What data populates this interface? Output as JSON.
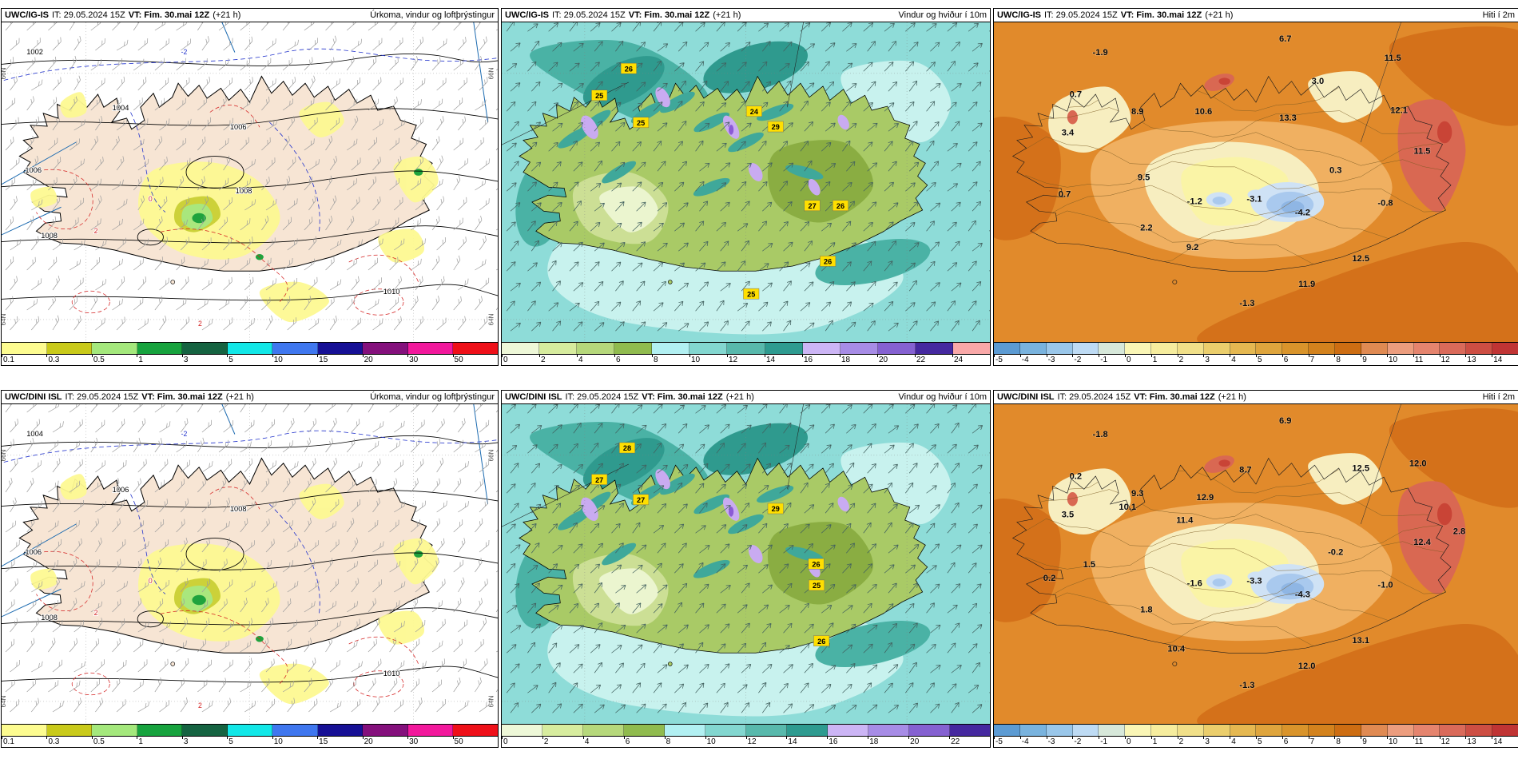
{
  "map_colors": {
    "precip_sea": "#ffffff",
    "precip_land": "#f7e5d4",
    "wind_sea": "#8edcd8",
    "wind_land": "#a9ca66",
    "temp_base": "#e18a2b",
    "gust_label_bg": "#ffdf00",
    "isobar_color": "#000000",
    "warm_front_color": "#d42020",
    "cold_front_color": "#2233cc"
  },
  "scales": {
    "precip": {
      "labels": [
        "0.1",
        "0.3",
        "0.5",
        "1",
        "3",
        "5",
        "10",
        "15",
        "20",
        "30",
        "50"
      ],
      "colors": [
        "#fdfc90",
        "#c9ca1a",
        "#a4e87c",
        "#17a33e",
        "#156341",
        "#12e7e7",
        "#3f77ef",
        "#161095",
        "#84107c",
        "#f2189c",
        "#ef1019"
      ]
    },
    "wind_24": {
      "labels": [
        "0",
        "2",
        "4",
        "6",
        "8",
        "10",
        "12",
        "14",
        "16",
        "18",
        "20",
        "22",
        "24"
      ],
      "colors": [
        "#eef8d8",
        "#d7ec9e",
        "#b6d87b",
        "#90bb4e",
        "#b2f0f2",
        "#83d7d0",
        "#58b9ac",
        "#2e9b90",
        "#ccb5f5",
        "#a78ce6",
        "#8561d1",
        "#45289f",
        "#f9a8a8"
      ]
    },
    "wind_22": {
      "labels": [
        "0",
        "2",
        "4",
        "6",
        "8",
        "10",
        "12",
        "14",
        "16",
        "18",
        "20",
        "22"
      ],
      "colors": [
        "#eef8d8",
        "#d7ec9e",
        "#b6d87b",
        "#90bb4e",
        "#b2f0f2",
        "#83d7d0",
        "#58b9ac",
        "#2e9b90",
        "#ccb5f5",
        "#a78ce6",
        "#8561d1",
        "#45289f"
      ]
    },
    "temp": {
      "labels": [
        "-5",
        "-4",
        "-3",
        "-2",
        "-1",
        "0",
        "1",
        "2",
        "3",
        "4",
        "5",
        "6",
        "7",
        "8",
        "9",
        "10",
        "11",
        "12",
        "13",
        "14"
      ],
      "colors": [
        "#5c9bd3",
        "#79b3de",
        "#9ac7ea",
        "#bedbf4",
        "#d7e8da",
        "#faf6b6",
        "#f6ed9e",
        "#f1e089",
        "#ebce6c",
        "#e5b851",
        "#dfa53d",
        "#d9942b",
        "#d3821d",
        "#cd6d12",
        "#e08a52",
        "#ec9d7e",
        "#e5846e",
        "#da6a5a",
        "#cd4e43",
        "#c03434"
      ]
    }
  },
  "rows": [
    {
      "panels": [
        {
          "type": "precip",
          "scale_ref": "precip",
          "header": {
            "model": "UWC/IG-IS",
            "init": "IT: 29.05.2024 15Z",
            "valid": "VT: Fim. 30.mai 12Z",
            "lead": "(+21 h)",
            "variable": "Úrkoma, vindur og loftþrýstingur"
          },
          "lat_labels": [
            {
              "t": "66N",
              "y": 0.16
            },
            {
              "t": "64N",
              "y": 0.93
            }
          ],
          "isobars": [
            {
              "v": "1002",
              "x": 0.067,
              "y": 0.1
            },
            {
              "v": "1004",
              "x": 0.24,
              "y": 0.275
            },
            {
              "v": "1006",
              "x": 0.477,
              "y": 0.335
            },
            {
              "v": "1006",
              "x": 0.064,
              "y": 0.47
            },
            {
              "v": "1008",
              "x": 0.488,
              "y": 0.535
            },
            {
              "v": "1008",
              "x": 0.096,
              "y": 0.675
            },
            {
              "v": "1010",
              "x": 0.786,
              "y": 0.85
            }
          ],
          "contour_labels": [
            {
              "v": "-2",
              "x": 0.368,
              "y": 0.1,
              "c": "blue"
            },
            {
              "v": "0",
              "x": 0.3,
              "y": 0.56,
              "c": "red"
            },
            {
              "v": "2",
              "x": 0.19,
              "y": 0.66,
              "c": "red"
            },
            {
              "v": "2",
              "x": 0.4,
              "y": 0.95,
              "c": "red"
            }
          ]
        },
        {
          "type": "wind",
          "scale_ref": "wind_24",
          "header": {
            "model": "UWC/IG-IS",
            "init": "IT: 29.05.2024 15Z",
            "valid": "VT: Fim. 30.mai 12Z",
            "lead": "(+21 h)",
            "variable": "Vindur og hviður í 10m"
          },
          "gusts": [
            {
              "v": "26",
              "x": 0.26,
              "y": 0.145
            },
            {
              "v": "25",
              "x": 0.2,
              "y": 0.229
            },
            {
              "v": "25",
              "x": 0.285,
              "y": 0.314
            },
            {
              "v": "24",
              "x": 0.517,
              "y": 0.279
            },
            {
              "v": "29",
              "x": 0.561,
              "y": 0.327
            },
            {
              "v": "27",
              "x": 0.636,
              "y": 0.574
            },
            {
              "v": "26",
              "x": 0.694,
              "y": 0.574
            },
            {
              "v": "26",
              "x": 0.668,
              "y": 0.748
            },
            {
              "v": "25",
              "x": 0.511,
              "y": 0.85
            }
          ]
        },
        {
          "type": "temp",
          "scale_ref": "temp",
          "header": {
            "model": "UWC/IG-IS",
            "init": "IT: 29.05.2024 15Z",
            "valid": "VT: Fim. 30.mai 12Z",
            "lead": "(+21 h)",
            "variable": "Hiti í 2m"
          },
          "temps": [
            {
              "v": "6.7",
              "x": 0.556,
              "y": 0.06
            },
            {
              "v": "-1.9",
              "x": 0.203,
              "y": 0.102
            },
            {
              "v": "11.5",
              "x": 0.761,
              "y": 0.12
            },
            {
              "v": "3.0",
              "x": 0.618,
              "y": 0.192
            },
            {
              "v": "0.7",
              "x": 0.156,
              "y": 0.234
            },
            {
              "v": "8.9",
              "x": 0.274,
              "y": 0.287
            },
            {
              "v": "10.6",
              "x": 0.4,
              "y": 0.287
            },
            {
              "v": "13.3",
              "x": 0.561,
              "y": 0.307
            },
            {
              "v": "12.1",
              "x": 0.773,
              "y": 0.284
            },
            {
              "v": "3.4",
              "x": 0.141,
              "y": 0.354
            },
            {
              "v": "11.5",
              "x": 0.817,
              "y": 0.411
            },
            {
              "v": "9.5",
              "x": 0.286,
              "y": 0.494
            },
            {
              "v": "0.3",
              "x": 0.652,
              "y": 0.471
            },
            {
              "v": "0.7",
              "x": 0.135,
              "y": 0.546
            },
            {
              "v": "-1.2",
              "x": 0.383,
              "y": 0.569
            },
            {
              "v": "-3.1",
              "x": 0.497,
              "y": 0.561
            },
            {
              "v": "-4.2",
              "x": 0.589,
              "y": 0.604
            },
            {
              "v": "-0.8",
              "x": 0.747,
              "y": 0.574
            },
            {
              "v": "2.2",
              "x": 0.291,
              "y": 0.651
            },
            {
              "v": "9.2",
              "x": 0.379,
              "y": 0.713
            },
            {
              "v": "12.5",
              "x": 0.7,
              "y": 0.748
            },
            {
              "v": "11.9",
              "x": 0.597,
              "y": 0.828
            },
            {
              "v": "-1.3",
              "x": 0.483,
              "y": 0.888
            }
          ]
        }
      ]
    },
    {
      "panels": [
        {
          "type": "precip",
          "scale_ref": "precip",
          "header": {
            "model": "UWC/DINI ISL",
            "init": "IT: 29.05.2024 15Z",
            "valid": "VT: Fim. 30.mai 12Z",
            "lead": "(+21 h)",
            "variable": "Úrkoma, vindur og loftþrýstingur"
          },
          "lat_labels": [
            {
              "t": "66N",
              "y": 0.16
            },
            {
              "t": "64N",
              "y": 0.93
            }
          ],
          "isobars": [
            {
              "v": "1004",
              "x": 0.067,
              "y": 0.1
            },
            {
              "v": "1006",
              "x": 0.24,
              "y": 0.275
            },
            {
              "v": "1008",
              "x": 0.477,
              "y": 0.335
            },
            {
              "v": "1006",
              "x": 0.064,
              "y": 0.47
            },
            {
              "v": "1008",
              "x": 0.096,
              "y": 0.675
            },
            {
              "v": "1010",
              "x": 0.786,
              "y": 0.85
            }
          ],
          "contour_labels": [
            {
              "v": "-2",
              "x": 0.368,
              "y": 0.1,
              "c": "blue"
            },
            {
              "v": "0",
              "x": 0.3,
              "y": 0.56,
              "c": "red"
            },
            {
              "v": "2",
              "x": 0.19,
              "y": 0.66,
              "c": "red"
            },
            {
              "v": "2",
              "x": 0.4,
              "y": 0.95,
              "c": "red"
            }
          ]
        },
        {
          "type": "wind",
          "scale_ref": "wind_22",
          "header": {
            "model": "UWC/DINI ISL",
            "init": "IT: 29.05.2024 15Z",
            "valid": "VT: Fim. 30.mai 12Z",
            "lead": "(+21 h)",
            "variable": "Vindur og hviður í 10m"
          },
          "gusts": [
            {
              "v": "28",
              "x": 0.257,
              "y": 0.137
            },
            {
              "v": "27",
              "x": 0.2,
              "y": 0.236
            },
            {
              "v": "27",
              "x": 0.285,
              "y": 0.299
            },
            {
              "v": "29",
              "x": 0.561,
              "y": 0.327
            },
            {
              "v": "26",
              "x": 0.644,
              "y": 0.5
            },
            {
              "v": "25",
              "x": 0.645,
              "y": 0.567
            },
            {
              "v": "26",
              "x": 0.655,
              "y": 0.741
            }
          ]
        },
        {
          "type": "temp",
          "scale_ref": "temp",
          "header": {
            "model": "UWC/DINI ISL",
            "init": "IT: 29.05.2024 15Z",
            "valid": "VT: Fim. 30.mai 12Z",
            "lead": "(+21 h)",
            "variable": "Hiti í 2m"
          },
          "temps": [
            {
              "v": "6.9",
              "x": 0.556,
              "y": 0.06
            },
            {
              "v": "-1.8",
              "x": 0.203,
              "y": 0.102
            },
            {
              "v": "12.0",
              "x": 0.809,
              "y": 0.194
            },
            {
              "v": "12.5",
              "x": 0.7,
              "y": 0.209
            },
            {
              "v": "8.7",
              "x": 0.48,
              "y": 0.214
            },
            {
              "v": "0.2",
              "x": 0.156,
              "y": 0.234
            },
            {
              "v": "9.3",
              "x": 0.274,
              "y": 0.287
            },
            {
              "v": "12.9",
              "x": 0.403,
              "y": 0.3
            },
            {
              "v": "10.1",
              "x": 0.255,
              "y": 0.33
            },
            {
              "v": "3.5",
              "x": 0.141,
              "y": 0.354
            },
            {
              "v": "11.4",
              "x": 0.364,
              "y": 0.371
            },
            {
              "v": "2.8",
              "x": 0.888,
              "y": 0.406
            },
            {
              "v": "12.4",
              "x": 0.817,
              "y": 0.44
            },
            {
              "v": "-0.2",
              "x": 0.652,
              "y": 0.471
            },
            {
              "v": "1.5",
              "x": 0.182,
              "y": 0.51
            },
            {
              "v": "0.2",
              "x": 0.106,
              "y": 0.552
            },
            {
              "v": "-3.3",
              "x": 0.497,
              "y": 0.561
            },
            {
              "v": "-1.6",
              "x": 0.383,
              "y": 0.569
            },
            {
              "v": "-4.3",
              "x": 0.589,
              "y": 0.604
            },
            {
              "v": "-1.0",
              "x": 0.747,
              "y": 0.574
            },
            {
              "v": "1.8",
              "x": 0.291,
              "y": 0.651
            },
            {
              "v": "10.4",
              "x": 0.348,
              "y": 0.774
            },
            {
              "v": "13.1",
              "x": 0.7,
              "y": 0.748
            },
            {
              "v": "12.0",
              "x": 0.597,
              "y": 0.828
            },
            {
              "v": "-1.3",
              "x": 0.483,
              "y": 0.888
            }
          ]
        }
      ]
    }
  ]
}
